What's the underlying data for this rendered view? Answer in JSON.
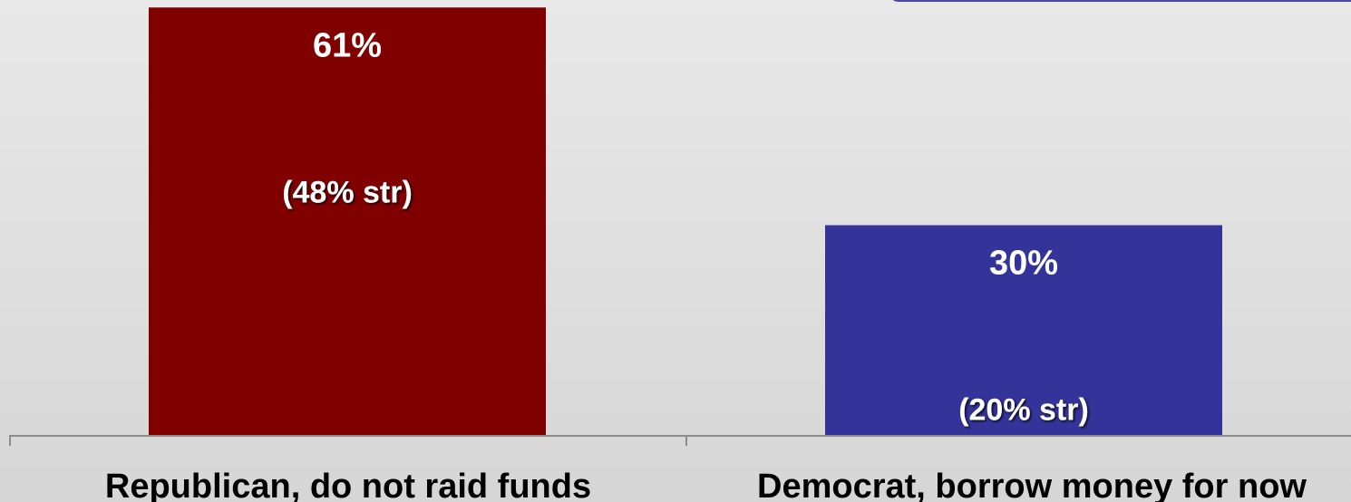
{
  "chart_data": {
    "type": "bar",
    "categories": [
      "Republican, do not raid funds",
      "Democrat, borrow money for now"
    ],
    "values": [
      61,
      30
    ],
    "value_labels": [
      "61%",
      "30%"
    ],
    "sub_labels": [
      "(48% str)",
      "(20% str)"
    ],
    "colors": [
      "#800000",
      "#333399"
    ],
    "title": "",
    "xlabel": "",
    "ylabel": "",
    "grid": false,
    "legend": "none"
  }
}
